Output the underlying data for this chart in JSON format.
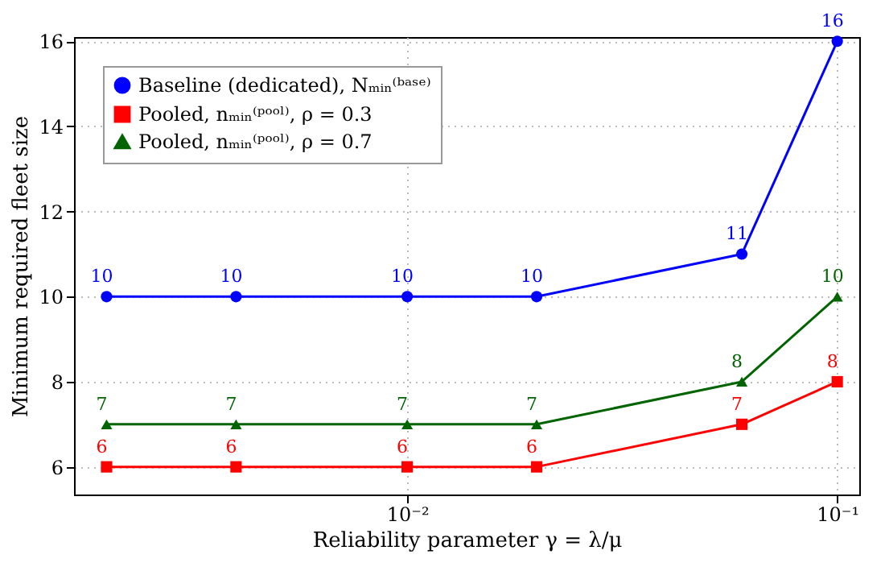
{
  "chart_data": {
    "type": "line",
    "xlabel": "Reliability parameter γ = λ/μ",
    "ylabel": "Minimum required fleet size",
    "x": [
      0.002,
      0.004,
      0.01,
      0.02,
      0.06,
      0.1
    ],
    "series": [
      {
        "name": "Baseline (dedicated), Nₘᵢₙ⁽ᵇᵃˢᵉ⁾",
        "color": "#0000ff",
        "marker": "circle",
        "values": [
          10,
          10,
          10,
          10,
          11,
          16
        ]
      },
      {
        "name": "Pooled, nₘᵢₙ⁽ᵖᵒᵒˡ⁾, ρ = 0.3",
        "color": "#ff0000",
        "marker": "square",
        "values": [
          6,
          6,
          6,
          6,
          7,
          8
        ]
      },
      {
        "name": "Pooled, nₘᵢₙ⁽ᵖᵒᵒˡ⁾, ρ = 0.7",
        "color": "#006400",
        "marker": "triangle",
        "values": [
          7,
          7,
          7,
          7,
          8,
          10
        ]
      }
    ],
    "log": "x",
    "xlim": [
      0.00168,
      0.1125
    ],
    "xticks": [
      {
        "value": 0.01,
        "label": "10⁻²"
      },
      {
        "value": 0.1,
        "label": "10⁻¹"
      }
    ],
    "ylim": [
      5.35,
      16.1
    ],
    "yticks": [
      6,
      8,
      10,
      12,
      14,
      16
    ],
    "grid": true,
    "legend": "top left",
    "data_labels": true
  }
}
